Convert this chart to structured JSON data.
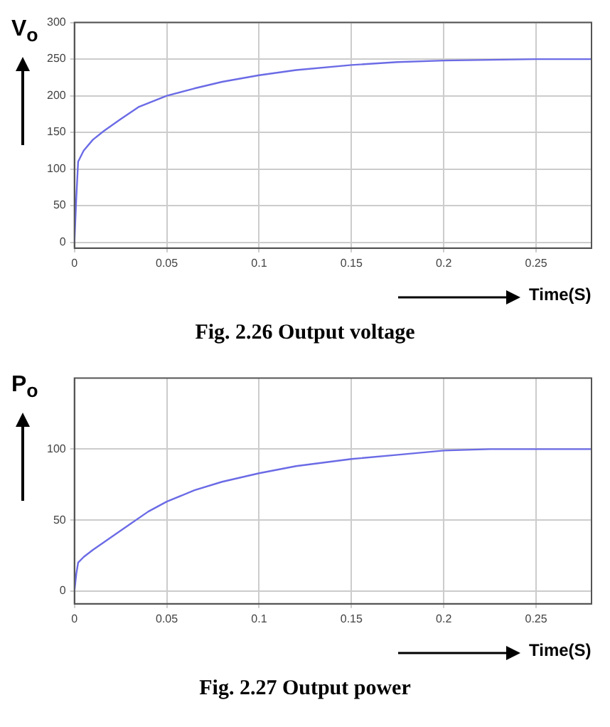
{
  "chart_data": [
    {
      "type": "line",
      "ylabel": "V$_{o}$",
      "xlabel": "Time(S)",
      "annotations": [
        "Fig. 2.26 Output voltage"
      ],
      "xlim": [
        0,
        0.28
      ],
      "xticks": [
        0,
        0.05,
        0.1,
        0.15,
        0.2,
        0.25
      ],
      "ylim": [
        -8,
        300
      ],
      "yticks": [
        0,
        50,
        100,
        150,
        200,
        250,
        300
      ],
      "grid": true,
      "legend": false,
      "series": [
        {
          "color": "#6b6be6",
          "x": [
            0,
            0.001,
            0.002,
            0.005,
            0.01,
            0.016,
            0.025,
            0.035,
            0.05,
            0.065,
            0.08,
            0.1,
            0.12,
            0.15,
            0.175,
            0.2,
            0.225,
            0.25,
            0.28
          ],
          "values": [
            0,
            60,
            110,
            125,
            140,
            152,
            168,
            185,
            200,
            210,
            219,
            228,
            235,
            242,
            246,
            248,
            249,
            250,
            250
          ]
        }
      ]
    },
    {
      "type": "line",
      "ylabel": "P$_{o}$",
      "xlabel": "Time(S)",
      "annotations": [
        "Fig. 2.27 Output power"
      ],
      "xlim": [
        0,
        0.28
      ],
      "xticks": [
        0,
        0.05,
        0.1,
        0.15,
        0.2,
        0.25
      ],
      "ylim": [
        -9,
        150
      ],
      "yticks": [
        0,
        50,
        100
      ],
      "grid": true,
      "legend": false,
      "series": [
        {
          "color": "#6b6be6",
          "x": [
            0,
            0.001,
            0.002,
            0.005,
            0.01,
            0.02,
            0.03,
            0.04,
            0.05,
            0.065,
            0.08,
            0.1,
            0.12,
            0.15,
            0.175,
            0.2,
            0.225,
            0.25,
            0.28
          ],
          "values": [
            0,
            12,
            20,
            24,
            29,
            38,
            47,
            56,
            63,
            71,
            77,
            83,
            88,
            93,
            96,
            99,
            100,
            100,
            100
          ]
        }
      ]
    }
  ]
}
